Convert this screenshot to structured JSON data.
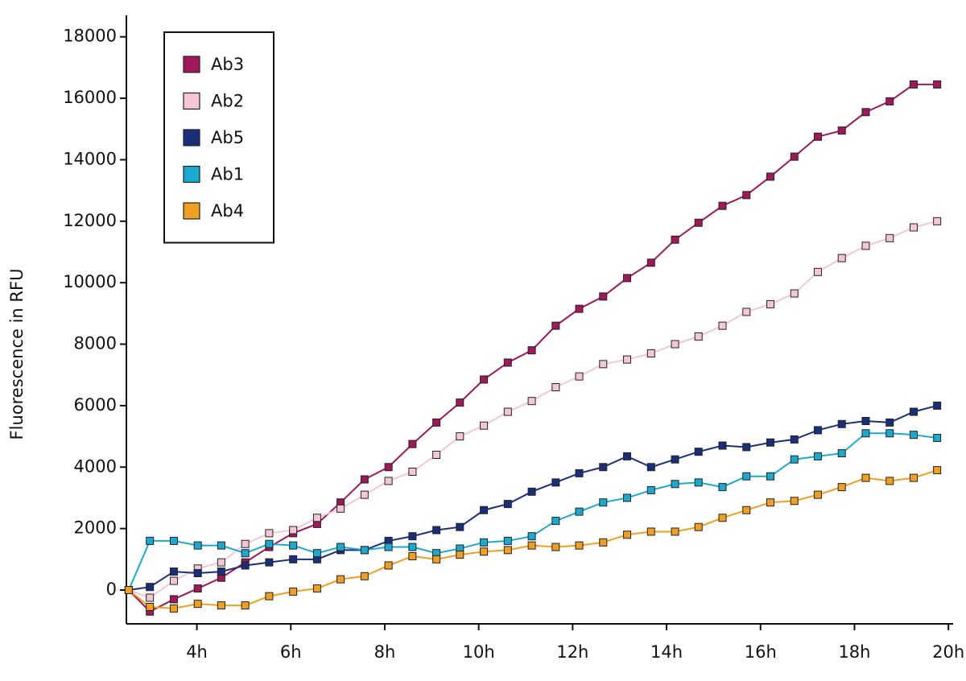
{
  "chart_data": {
    "type": "line",
    "y_label": "Fluorescence in RFU",
    "x": [
      2.55,
      3.0,
      3.51,
      4.02,
      4.52,
      5.03,
      5.54,
      6.05,
      6.56,
      7.06,
      7.57,
      8.08,
      8.59,
      9.1,
      9.6,
      10.11,
      10.62,
      11.13,
      11.64,
      12.14,
      12.65,
      13.16,
      13.67,
      14.18,
      14.68,
      15.19,
      15.7,
      16.21,
      16.72,
      17.22,
      17.73,
      18.24,
      18.75,
      19.26,
      19.76
    ],
    "series": [
      {
        "name": "Ab3",
        "color": "#a0175a",
        "values": [
          0,
          -700,
          -300,
          50,
          400,
          900,
          1400,
          1850,
          2150,
          2850,
          3600,
          4000,
          4750,
          5450,
          6100,
          6850,
          7400,
          7800,
          8600,
          9150,
          9550,
          10150,
          10650,
          11400,
          11950,
          12500,
          12850,
          13450,
          14100,
          14750,
          14950,
          15550,
          15900,
          16450,
          16450
        ]
      },
      {
        "name": "Ab2",
        "color": "#f4c6d8",
        "values": [
          0,
          -250,
          300,
          700,
          900,
          1500,
          1850,
          1950,
          2350,
          2650,
          3100,
          3550,
          3850,
          4400,
          5000,
          5350,
          5800,
          6150,
          6600,
          6950,
          7350,
          7500,
          7700,
          8000,
          8250,
          8600,
          9050,
          9300,
          9650,
          10350,
          10800,
          11200,
          11450,
          11800,
          12000
        ]
      },
      {
        "name": "Ab5",
        "color": "#1a2f7a",
        "values": [
          0,
          100,
          600,
          550,
          600,
          800,
          900,
          1000,
          1000,
          1300,
          1300,
          1600,
          1750,
          1950,
          2050,
          2600,
          2800,
          3200,
          3500,
          3800,
          4000,
          4350,
          4000,
          4250,
          4500,
          4700,
          4650,
          4800,
          4900,
          5200,
          5400,
          5500,
          5450,
          5800,
          6000
        ]
      },
      {
        "name": "Ab1",
        "color": "#1aaad0",
        "values": [
          0,
          1600,
          1600,
          1450,
          1450,
          1200,
          1500,
          1450,
          1200,
          1400,
          1300,
          1400,
          1400,
          1200,
          1350,
          1550,
          1600,
          1750,
          2250,
          2550,
          2850,
          3000,
          3250,
          3450,
          3500,
          3350,
          3700,
          3700,
          4250,
          4350,
          4450,
          5100,
          5100,
          5050,
          4950
        ]
      },
      {
        "name": "Ab4",
        "color": "#f0a020",
        "values": [
          0,
          -550,
          -600,
          -450,
          -500,
          -500,
          -200,
          -50,
          50,
          350,
          450,
          800,
          1100,
          1000,
          1150,
          1250,
          1300,
          1450,
          1400,
          1450,
          1550,
          1800,
          1900,
          1900,
          2050,
          2350,
          2600,
          2850,
          2900,
          3100,
          3350,
          3650,
          3550,
          3650,
          3900
        ]
      }
    ],
    "xlim": [
      2.5,
      20.1
    ],
    "xticks": [
      {
        "value": 4,
        "label": "4h"
      },
      {
        "value": 6,
        "label": "6h"
      },
      {
        "value": 8,
        "label": "8h"
      },
      {
        "value": 10,
        "label": "10h"
      },
      {
        "value": 12,
        "label": "12h"
      },
      {
        "value": 14,
        "label": "14h"
      },
      {
        "value": 16,
        "label": "16h"
      },
      {
        "value": 18,
        "label": "18h"
      },
      {
        "value": 20,
        "label": "20h"
      }
    ],
    "ylim": [
      -1100,
      18700
    ],
    "yticks": [
      0,
      2000,
      4000,
      6000,
      8000,
      10000,
      12000,
      14000,
      16000,
      18000
    ],
    "legend": "upper left"
  }
}
